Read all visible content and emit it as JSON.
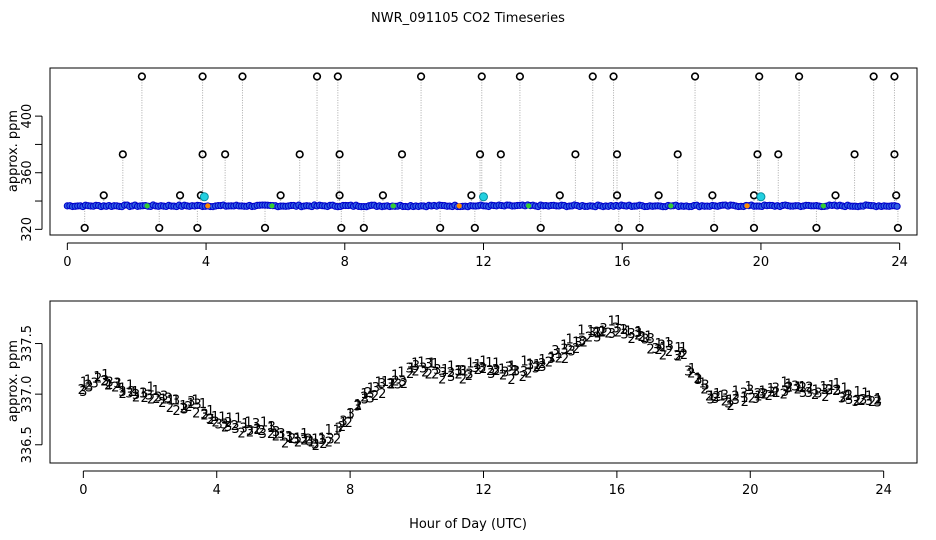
{
  "chart_data": {
    "title": "NWR_091105  CO2 Timeseries",
    "xlabel": "Hour of Day (UTC)",
    "colors": {
      "raw_marker": "#0000cc",
      "raw_fill": "#2f5fe0",
      "excluded_marker": "#000000",
      "flag_marker": "#22d0e0",
      "spike_line": "#aaaaaa",
      "series_1": "#dd0000",
      "series_2": "#22aa22",
      "series_3": "#0000cc"
    },
    "panels": [
      {
        "name": "raw",
        "type": "scatter",
        "ylabel": "approx. ppm",
        "xlim": [
          -0.5,
          24.5
        ],
        "ylim": [
          316,
          434
        ],
        "xticks": [
          "0",
          "4",
          "8",
          "12",
          "16",
          "20",
          "24"
        ],
        "yticks": [
          "320",
          "360",
          "400"
        ],
        "baseline_ppm": 336.6,
        "spikes_high": [
          2.15,
          3.9,
          5.05,
          7.2,
          7.8,
          10.2,
          11.95,
          13.05,
          15.15,
          15.75,
          18.1,
          19.95,
          21.1,
          23.25,
          23.85
        ],
        "spikes_344": [
          1.05,
          3.25,
          3.85,
          6.15,
          7.85,
          9.1,
          11.65,
          14.2,
          15.85,
          17.05,
          18.6,
          19.8,
          22.15,
          23.9
        ],
        "spikes_373": [
          1.6,
          3.9,
          4.55,
          6.7,
          7.85,
          9.65,
          11.9,
          12.5,
          14.65,
          15.85,
          17.6,
          19.9,
          20.5,
          22.7,
          23.85
        ],
        "spikes_low": [
          0.5,
          2.65,
          3.75,
          5.7,
          7.9,
          8.55,
          10.75,
          11.75,
          13.65,
          15.9,
          16.5,
          18.65,
          19.8,
          21.6,
          23.95
        ],
        "flags": [
          {
            "x": 3.95,
            "y": 343
          },
          {
            "x": 12.0,
            "y": 343
          },
          {
            "x": 20.0,
            "y": 343
          }
        ]
      },
      {
        "name": "detail",
        "type": "scatter",
        "ylabel": "approx. ppm",
        "xlim": [
          -1,
          25
        ],
        "ylim": [
          336.32,
          337.92
        ],
        "xticks": [
          "0",
          "4",
          "8",
          "12",
          "16",
          "20",
          "24"
        ],
        "yticks": [
          "336.5",
          "337.0",
          "337.5"
        ],
        "point_labels": [
          "1",
          "2",
          "3"
        ],
        "profile_x": [
          0,
          0.4,
          1.5,
          2.5,
          3.5,
          4.1,
          4.8,
          5.6,
          6.0,
          6.5,
          7.0,
          7.7,
          8.3,
          9.0,
          9.6,
          10.0,
          10.8,
          11.2,
          12.0,
          12.7,
          13.5,
          14.5,
          15.2,
          16.0,
          16.7,
          17.2,
          18.0,
          18.7,
          19.3,
          20.0,
          20.6,
          21.3,
          22.0,
          22.7,
          23.3,
          23.8
        ],
        "profile_y": [
          337.08,
          337.15,
          337.05,
          336.95,
          336.86,
          336.74,
          336.7,
          336.64,
          336.57,
          336.55,
          336.54,
          336.65,
          336.95,
          337.08,
          337.17,
          337.3,
          337.22,
          337.22,
          337.26,
          337.22,
          337.27,
          337.45,
          337.6,
          337.66,
          337.57,
          337.5,
          337.38,
          337.0,
          336.95,
          337.0,
          337.0,
          337.08,
          337.05,
          337.02,
          336.96,
          336.93
        ],
        "sample_step_hours": 0.2,
        "jitter_amplitude": 0.05
      }
    ]
  }
}
